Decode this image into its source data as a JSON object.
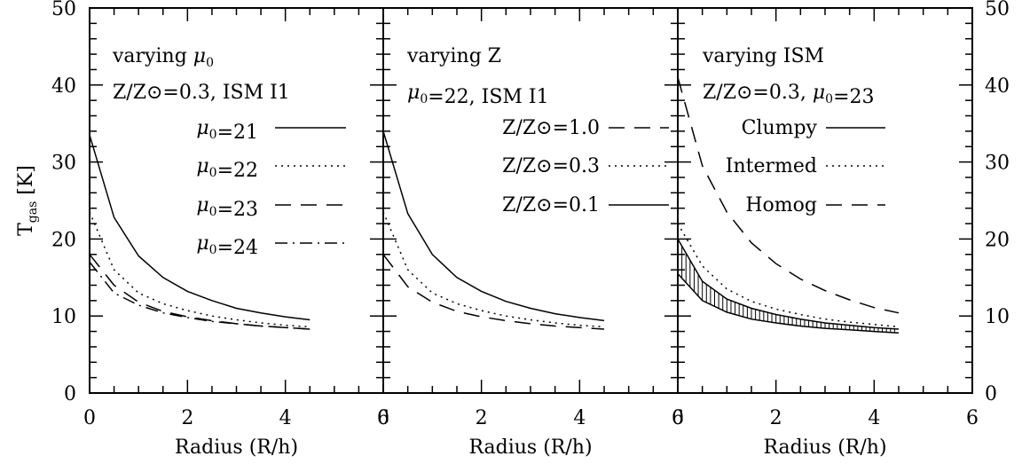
{
  "chart_data": {
    "type": "line",
    "ylabel": "T_gas [K]",
    "ylabel_main": "T",
    "ylabel_sub": "gas",
    "ylabel_unit": "[K]",
    "ylim": [
      0,
      50
    ],
    "yticks": [
      0,
      10,
      20,
      30,
      40,
      50
    ],
    "xlim": [
      0,
      6
    ],
    "grid": false,
    "panels": [
      {
        "xlabel": "Radius (R/h)",
        "xlim": [
          0,
          6
        ],
        "xticks": [
          0,
          2,
          4,
          6
        ],
        "header": "varying μ0",
        "subheader": "Z/Z⊙=0.3, ISM I1",
        "series": [
          {
            "name": "μ0=21",
            "dash": "solid",
            "x": [
              0,
              0.5,
              1,
              1.5,
              2,
              2.5,
              3,
              3.5,
              4,
              4.5
            ],
            "y": [
              33.5,
              22.8,
              17.8,
              15.0,
              13.2,
              12.0,
              11.0,
              10.4,
              9.9,
              9.5
            ]
          },
          {
            "name": "μ0=22",
            "dash": "dotted",
            "x": [
              0,
              0.5,
              1,
              1.5,
              2,
              2.5,
              3,
              3.5,
              4,
              4.5
            ],
            "y": [
              23.5,
              16.0,
              13.0,
              11.6,
              10.7,
              10.0,
              9.5,
              9.1,
              8.8,
              8.6
            ]
          },
          {
            "name": "μ0=23",
            "dash": "dashed",
            "x": [
              0,
              0.5,
              1,
              1.5,
              2,
              2.5,
              3,
              3.5,
              4,
              4.5
            ],
            "y": [
              18.0,
              14.0,
              11.8,
              10.6,
              9.9,
              9.4,
              9.0,
              8.7,
              8.5,
              8.3
            ]
          },
          {
            "name": "μ0=24",
            "dash": "dashdot",
            "x": [
              0,
              0.5,
              1,
              1.5,
              2,
              2.5,
              3,
              3.5,
              4,
              4.5
            ],
            "y": [
              17.0,
              13.0,
              11.4,
              10.4,
              9.8,
              9.3,
              9.0,
              8.7,
              8.5,
              8.3
            ]
          }
        ]
      },
      {
        "xlabel": "Radius (R/h)",
        "xlim": [
          0,
          6
        ],
        "xticks": [
          0,
          2,
          4,
          6
        ],
        "header": "varying Z",
        "subheader": "μ0=22, ISM I1",
        "series": [
          {
            "name": "Z/Z⊙=1.0",
            "dash": "dashed",
            "x": [
              0,
              0.5,
              1,
              1.5,
              2,
              2.5,
              3,
              3.5,
              4,
              4.5
            ],
            "y": [
              18.0,
              13.8,
              11.8,
              10.6,
              9.9,
              9.4,
              9.0,
              8.7,
              8.5,
              8.3
            ]
          },
          {
            "name": "Z/Z⊙=0.3",
            "dash": "dotted",
            "x": [
              0,
              0.5,
              1,
              1.5,
              2,
              2.5,
              3,
              3.5,
              4,
              4.5
            ],
            "y": [
              23.5,
              16.0,
              13.0,
              11.6,
              10.7,
              10.0,
              9.5,
              9.1,
              8.8,
              8.6
            ]
          },
          {
            "name": "Z/Z⊙=0.1",
            "dash": "solid",
            "x": [
              0,
              0.5,
              1,
              1.5,
              2,
              2.5,
              3,
              3.5,
              4,
              4.5
            ],
            "y": [
              34.0,
              23.3,
              18.0,
              15.0,
              13.2,
              11.9,
              11.0,
              10.3,
              9.8,
              9.4
            ]
          }
        ]
      },
      {
        "xlabel": "Radius (R/h)",
        "xlim": [
          0,
          6
        ],
        "xticks": [
          0,
          2,
          4,
          6
        ],
        "header": "varying ISM",
        "subheader": "Z/Z⊙=0.3, μ0=23",
        "series": [
          {
            "name": "Clumpy",
            "dash": "solid",
            "x": [
              0,
              0.5,
              1,
              1.5,
              2,
              2.5,
              3,
              3.5,
              4,
              4.5
            ],
            "y": [
              15.5,
              12.0,
              10.5,
              9.6,
              9.1,
              8.7,
              8.4,
              8.2,
              8.0,
              7.8
            ],
            "band_upper": [
              20.0,
              14.5,
              12.2,
              11.0,
              10.2,
              9.6,
              9.1,
              8.8,
              8.5,
              8.3
            ]
          },
          {
            "name": "Intermed",
            "dash": "dotted",
            "x": [
              0,
              0.5,
              1,
              1.5,
              2,
              2.5,
              3,
              3.5,
              4,
              4.5
            ],
            "y": [
              22.0,
              16.5,
              13.5,
              11.9,
              10.9,
              10.2,
              9.6,
              9.2,
              8.9,
              8.6
            ]
          },
          {
            "name": "Homog",
            "dash": "dashed",
            "x": [
              0,
              0.5,
              1,
              1.5,
              2,
              2.5,
              3,
              3.5,
              4,
              4.5
            ],
            "y": [
              41.0,
              29.5,
              23.5,
              19.5,
              16.8,
              14.8,
              13.3,
              12.1,
              11.1,
              10.4
            ]
          }
        ]
      }
    ]
  }
}
